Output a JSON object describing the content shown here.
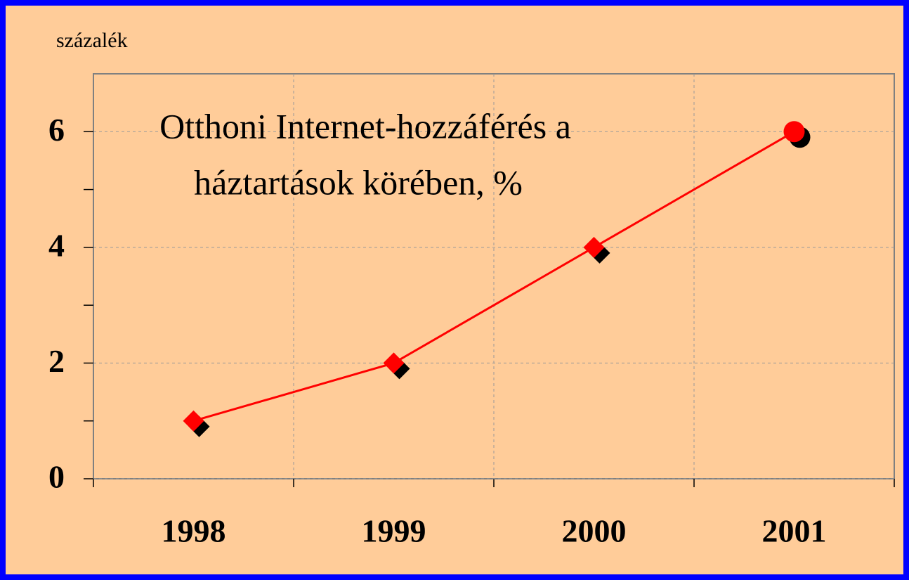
{
  "chart_data": {
    "type": "line",
    "title": [
      "Otthoni Internet-hozzáférés a",
      "háztartások körében, %"
    ],
    "y_axis_label": "százalék",
    "categories": [
      "1998",
      "1999",
      "2000",
      "2001"
    ],
    "series": [
      {
        "color": "#ff0000",
        "values": [
          1,
          2,
          4,
          6
        ],
        "markers": [
          "diamond",
          "diamond",
          "diamond",
          "circle"
        ]
      }
    ],
    "ylim": [
      0,
      7
    ],
    "yticks": [
      0,
      2,
      4,
      6
    ],
    "yminorticks": [
      1,
      3,
      5
    ],
    "grid": true
  }
}
